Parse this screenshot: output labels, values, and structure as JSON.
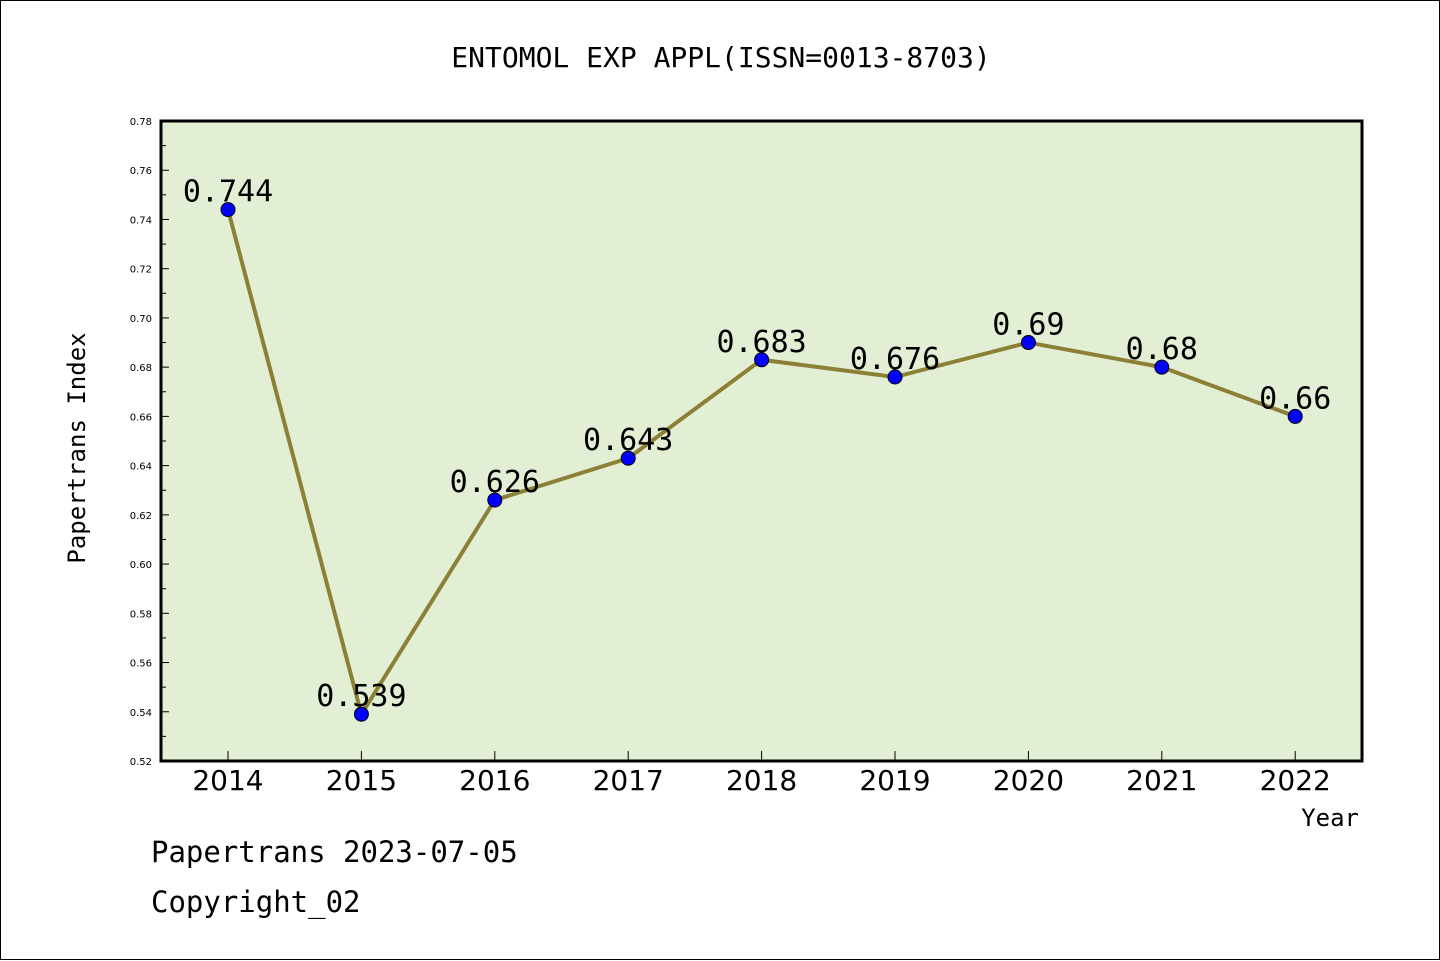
{
  "footer": {
    "line1": "Papertrans 2023-07-05",
    "line2": "Copyright_02"
  },
  "chart_data": {
    "type": "line",
    "title": "ENTOMOL EXP APPL(ISSN=0013-8703)",
    "xlabel": "Year",
    "ylabel": "Papertrans Index",
    "categories": [
      "2014",
      "2015",
      "2016",
      "2017",
      "2018",
      "2019",
      "2020",
      "2021",
      "2022"
    ],
    "series": [
      {
        "values": [
          0.744,
          0.539,
          0.626,
          0.643,
          0.683,
          0.676,
          0.69,
          0.68,
          0.66
        ],
        "labels": [
          "0.744",
          "0.539",
          "0.626",
          "0.643",
          "0.683",
          "0.676",
          "0.69",
          "0.68",
          "0.66"
        ]
      }
    ],
    "ylim": [
      0.52,
      0.78
    ],
    "yticks": [
      "0.52",
      "0.54",
      "0.56",
      "0.58",
      "0.60",
      "0.62",
      "0.64",
      "0.66",
      "0.68",
      "0.70",
      "0.72",
      "0.74",
      "0.76",
      "0.78"
    ],
    "grid": false,
    "legend": "none",
    "colors": {
      "plot_background": "#e2efd5",
      "line": "#8b8035",
      "marker": "#0000ff"
    }
  }
}
